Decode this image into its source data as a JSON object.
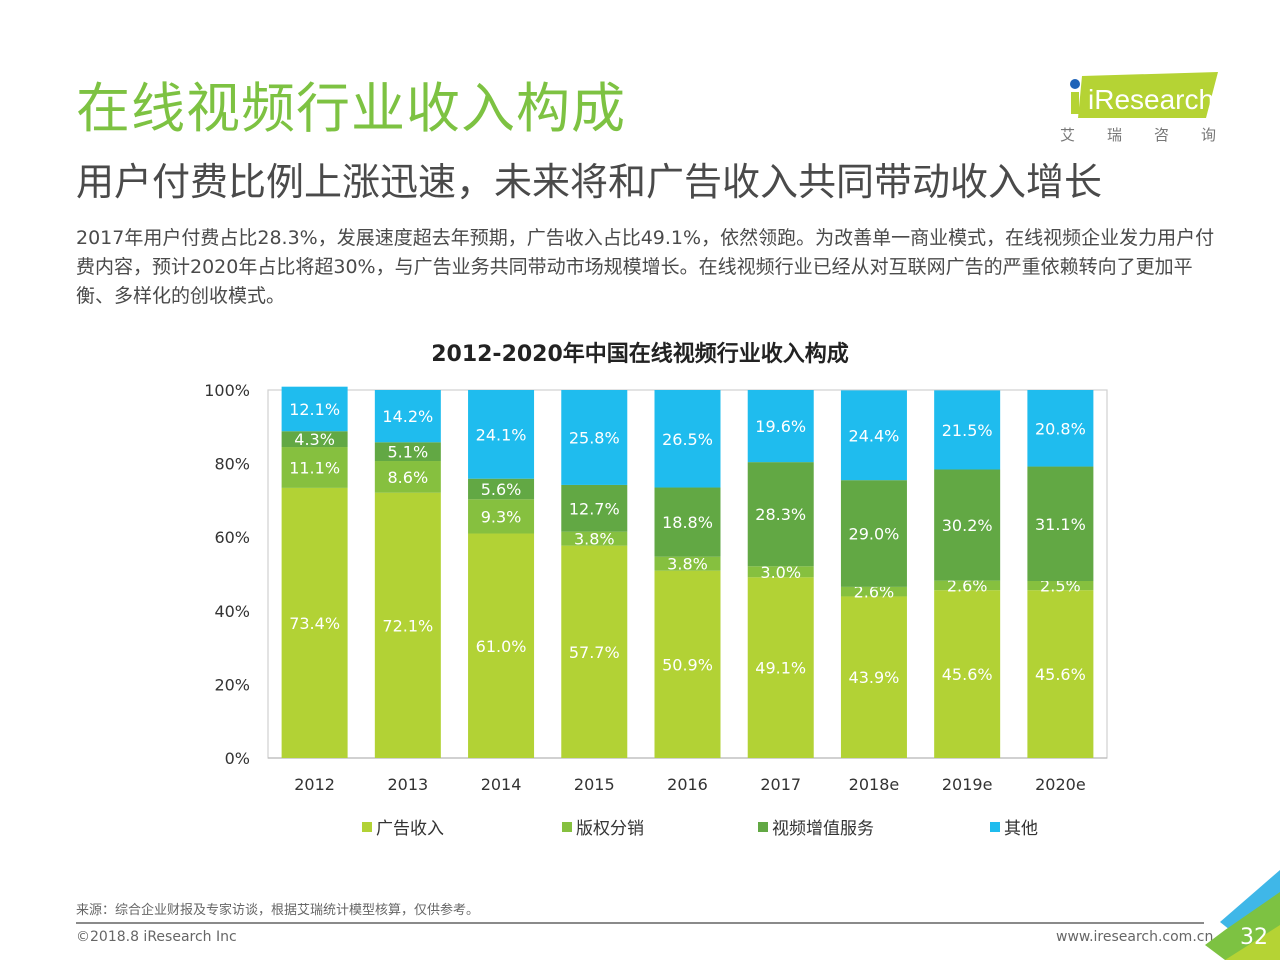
{
  "header": {
    "title": "在线视频行业收入构成",
    "subtitle": "用户付费比例上涨迅速，未来将和广告收入共同带动收入增长",
    "description": "2017年用户付费占比28.3%，发展速度超去年预期，广告收入占比49.1%，依然领跑。为改善单一商业模式，在线视频企业发力用户付费内容，预计2020年占比将超30%，与广告业务共同带动市场规模增长。在线视频行业已经从对互联网广告的严重依赖转向了更加平衡、多样化的创收模式。"
  },
  "logo": {
    "brand": "iResearch",
    "sub_chars": [
      "艾",
      "瑞",
      "咨",
      "询"
    ],
    "brand_color": "#b5d334",
    "dot_color": "#1e63b8"
  },
  "chart_data": {
    "type": "bar",
    "stacked": true,
    "title": "2012-2020年中国在线视频行业收入构成",
    "xlabel": "",
    "ylabel": "",
    "ylim": [
      0,
      100
    ],
    "yticks": [
      "0%",
      "20%",
      "40%",
      "60%",
      "80%",
      "100%"
    ],
    "ytick_values": [
      0,
      20,
      40,
      60,
      80,
      100
    ],
    "categories": [
      "2012",
      "2013",
      "2014",
      "2015",
      "2016",
      "2017",
      "2018e",
      "2019e",
      "2020e"
    ],
    "series": [
      {
        "name": "广告收入",
        "color": "#b2d235",
        "values": [
          73.4,
          72.1,
          61.0,
          57.7,
          50.9,
          49.1,
          43.9,
          45.6,
          45.6
        ],
        "labels": [
          "73.4%",
          "72.1%",
          "61.0%",
          "57.7%",
          "50.9%",
          "49.1%",
          "43.9%",
          "45.6%",
          "45.6%"
        ]
      },
      {
        "name": "版权分销",
        "color": "#86c03f",
        "values": [
          11.1,
          8.6,
          9.3,
          3.8,
          3.8,
          3.0,
          2.6,
          2.6,
          2.5
        ],
        "labels": [
          "11.1%",
          "8.6%",
          "9.3%",
          "3.8%",
          "3.8%",
          "3.0%",
          "2.6%",
          "2.6%",
          "2.5%"
        ]
      },
      {
        "name": "视频增值服务",
        "color": "#62a844",
        "values": [
          4.3,
          5.1,
          5.6,
          12.7,
          18.8,
          28.3,
          29.0,
          30.2,
          31.1
        ],
        "labels": [
          "4.3%",
          "5.1%",
          "5.6%",
          "12.7%",
          "18.8%",
          "28.3%",
          "29.0%",
          "30.2%",
          "31.1%"
        ]
      },
      {
        "name": "其他",
        "color": "#1fbcee",
        "values": [
          12.1,
          14.2,
          24.1,
          25.8,
          26.5,
          19.6,
          24.4,
          21.5,
          20.8
        ],
        "labels": [
          "12.1%",
          "14.2%",
          "24.1%",
          "25.8%",
          "26.5%",
          "19.6%",
          "24.4%",
          "21.5%",
          "20.8%"
        ]
      }
    ],
    "legend_position": "bottom",
    "grid": false
  },
  "footer": {
    "source": "来源：综合企业财报及专家访谈，根据艾瑞统计模型核算，仅供参考。",
    "copyright": "©2018.8 iResearch Inc",
    "website": "www.iresearch.com.cn",
    "page_number": "32"
  }
}
